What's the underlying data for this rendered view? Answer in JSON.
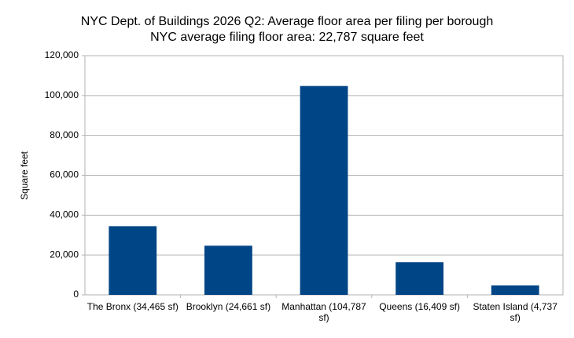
{
  "chart_data": {
    "type": "bar",
    "title": "NYC Dept. of Buildings 2026 Q2: Average floor area per filing per borough",
    "subtitle": "NYC average filing floor area: 22,787 square feet",
    "y_label": "Square feet",
    "categories": [
      "The Bronx (34,465 sf)",
      "Brooklyn (24,661 sf)",
      "Manhattan (104,787 sf)",
      "Queens (16,409 sf)",
      "Staten Island (4,737 sf)"
    ],
    "values": [
      34465,
      24661,
      104787,
      16409,
      4737
    ],
    "color": "#004586",
    "ylim": [
      0,
      120000
    ],
    "yticks": [
      0,
      {
        "value": 20000,
        "label": "20,000"
      },
      {
        "value": 40000,
        "label": "40,000"
      },
      {
        "value": 60000,
        "label": "60,000"
      },
      {
        "value": 80000,
        "label": "80,000"
      },
      {
        "value": 100000,
        "label": "100,000"
      },
      {
        "value": 120000,
        "label": "120,000"
      }
    ],
    "grid": true
  }
}
